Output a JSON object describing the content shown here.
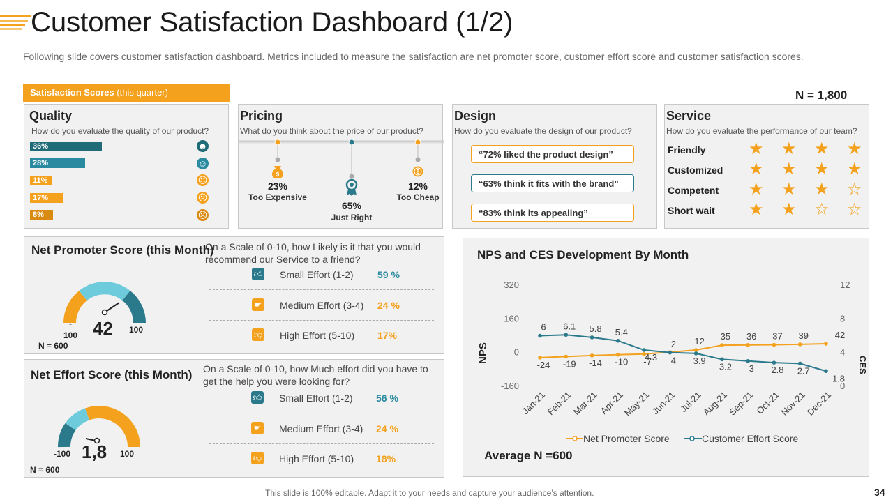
{
  "header": {
    "title": "Customer Satisfaction Dashboard (1/2)",
    "subtitle": "Following slide covers customer satisfaction dashboard. Metrics included to measure the satisfaction are net promoter score, customer effort score and customer satisfaction scores.",
    "section_tag_bold": "Satisfaction Scores",
    "section_tag_light": " (this quarter)",
    "n_value": "N = 1,800"
  },
  "colors": {
    "accent": "#f4a11d",
    "teal": "#2a7a8c",
    "teal_light": "#6ecbdb",
    "orange_dark": "#d98a10"
  },
  "quality": {
    "title": "Quality",
    "question": "How do you evaluate the quality of our product?",
    "bars": [
      {
        "label": "36%",
        "value": 36,
        "color": "#1f6b78"
      },
      {
        "label": "28%",
        "value": 28,
        "color": "#2a8aa0"
      },
      {
        "label": "11%",
        "value": 11,
        "color": "#f4a11d"
      },
      {
        "label": "17%",
        "value": 17,
        "color": "#f4a11d"
      },
      {
        "label": "8%",
        "value": 8,
        "color": "#d98a10"
      }
    ],
    "faces": [
      "laugh-face-icon",
      "smile-face-icon",
      "neutral-face-icon",
      "sad-face-icon",
      "angry-face-icon"
    ]
  },
  "pricing": {
    "title": "Pricing",
    "question": "What do you think about the price of our product?",
    "items": [
      {
        "value": "23%",
        "label": "Too Expensive"
      },
      {
        "value": "65%",
        "label": "Just Right"
      },
      {
        "value": "12%",
        "label": "Too Cheap"
      }
    ]
  },
  "design": {
    "title": "Design",
    "question": "How do you evaluate the design of our product?",
    "quotes": [
      "“72% liked the product design”",
      "“63% think it fits with the brand”",
      "“83% think its appealing”"
    ]
  },
  "service": {
    "title": "Service",
    "question": "How do you evaluate the performance of our team?",
    "rows": [
      {
        "label": "Friendly",
        "stars": 4
      },
      {
        "label": "Customized",
        "stars": 4
      },
      {
        "label": "Competent",
        "stars": 3
      },
      {
        "label": "Short wait",
        "stars": 2
      }
    ],
    "max_stars": 4
  },
  "nps": {
    "title": "Net Promoter Score (this Month)",
    "question": "On a Scale of 0-10, how Likely is it that you would recommend our Service to a friend?",
    "value": "42",
    "min": "-\n100",
    "min_top": "-",
    "min_bottom": "100",
    "max": "100",
    "n": "N = 600",
    "rows": [
      {
        "label": "Small Effort (1-2)",
        "value": "59 %"
      },
      {
        "label": "Medium Effort (3-4)",
        "value": "24 %"
      },
      {
        "label": "High Effort (5-10)",
        "value": "17%"
      }
    ]
  },
  "nes": {
    "title": "Net Effort Score (this Month)",
    "question": "On a Scale of 0-10, how Much effort did you have to get the help you were looking for?",
    "value": "1,8",
    "min": "-100",
    "max": "100",
    "n": "N = 600",
    "rows": [
      {
        "label": "Small Effort (1-2)",
        "value": "56 %"
      },
      {
        "label": "Medium Effort (3-4)",
        "value": "24 %"
      },
      {
        "label": "High Effort (5-10)",
        "value": "18%"
      }
    ]
  },
  "chart_data": {
    "type": "line",
    "title": "NPS and CES Development By Month",
    "categories": [
      "Jan-21",
      "Feb-21",
      "Mar-21",
      "Apr-21",
      "May-21",
      "Jun-21",
      "Jul-21",
      "Aug-21",
      "Sep-21",
      "Oct-21",
      "Nov-21",
      "Dec-21"
    ],
    "series": [
      {
        "name": "Net Promoter Score",
        "axis": "left",
        "color": "#f4a11d",
        "values": [
          -24,
          -19,
          -14,
          -10,
          -7,
          2,
          12,
          35,
          36,
          37,
          39,
          42
        ],
        "labels": [
          "-24",
          "-19",
          "-14",
          "-10",
          "-7",
          "2",
          "12",
          "35",
          "36",
          "37",
          "39",
          "42"
        ]
      },
      {
        "name": "Customer Effort Score",
        "axis": "right",
        "color": "#2a7a8c",
        "values": [
          6,
          6.1,
          5.8,
          5.4,
          4.3,
          4,
          3.9,
          3.2,
          3,
          2.8,
          2.7,
          1.8
        ],
        "labels": [
          "6",
          "6.1",
          "5.8",
          "5.4",
          "4.3",
          "4",
          "3.9",
          "3.2",
          "3",
          "2.8",
          "2.7",
          "1.8"
        ]
      }
    ],
    "ylabel_left": "NPS",
    "ylabel_right": "CES",
    "yticks_left": [
      "320",
      "160",
      "0",
      "-160"
    ],
    "yticks_right": [
      "12",
      "8",
      "4",
      "0"
    ],
    "ylim_left": [
      -160,
      320
    ],
    "ylim_right": [
      0,
      12
    ],
    "legend_position": "bottom",
    "footnote": "Average N =600"
  },
  "footer": {
    "text": "This slide is 100% editable. Adapt it to your needs and capture your audience’s attention.",
    "page": "34"
  }
}
